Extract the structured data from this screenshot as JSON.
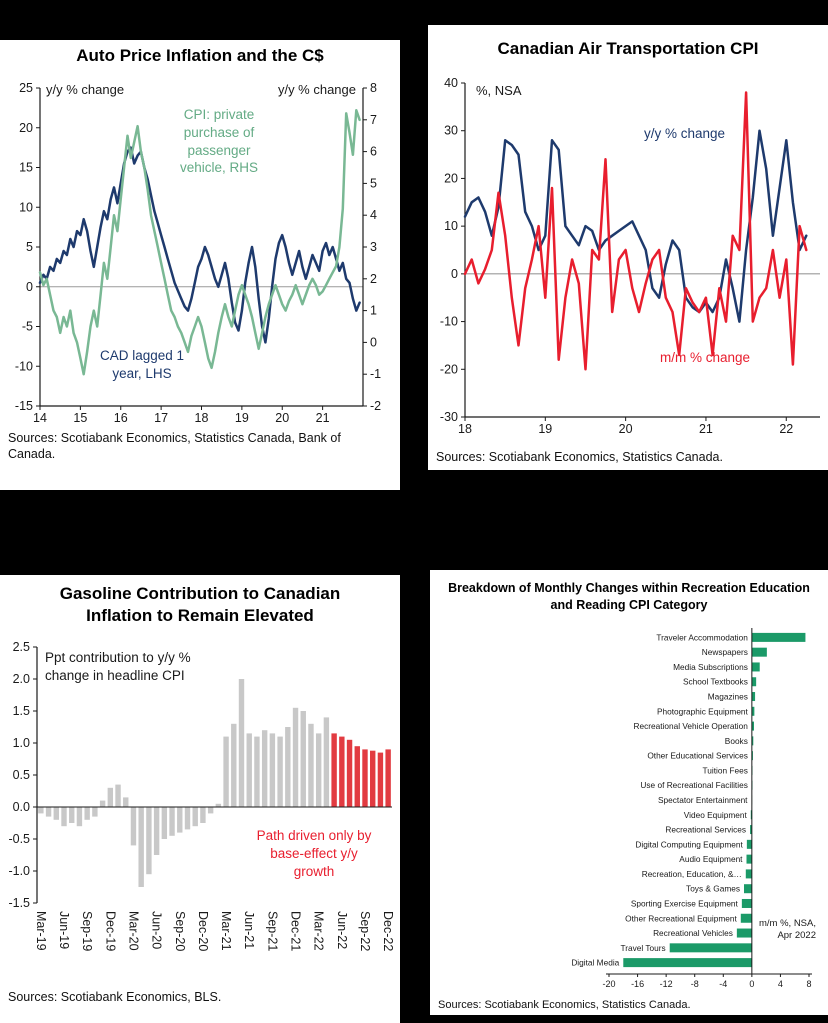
{
  "page": {
    "background": "#000000",
    "panel_background": "#ffffff"
  },
  "colors": {
    "navy": "#1e3a6d",
    "green_line": "#79b894",
    "green_text": "#64ab85",
    "red": "#e81e2e",
    "gray_bar": "#c8c8c8",
    "red_bar": "#e23b41",
    "green_bar": "#1b9a68",
    "axis": "#1a1a1a",
    "zero_line": "#9a9a9a"
  },
  "chart_data": [
    {
      "type": "line",
      "title": "Auto Price Inflation and the C$",
      "left_axis": {
        "label": "y/y % change",
        "min": -15,
        "max": 25,
        "step": 5
      },
      "right_axis": {
        "label": "y/y % change",
        "min": -2,
        "max": 8,
        "step": 1
      },
      "x_axis": {
        "min": 2014,
        "max": 2022,
        "ticks": [
          {
            "x": 2014,
            "label": "14"
          },
          {
            "x": 2015,
            "label": "15"
          },
          {
            "x": 2016,
            "label": "16"
          },
          {
            "x": 2017,
            "label": "17"
          },
          {
            "x": 2018,
            "label": "18"
          },
          {
            "x": 2019,
            "label": "19"
          },
          {
            "x": 2020,
            "label": "20"
          },
          {
            "x": 2021,
            "label": "21"
          }
        ]
      },
      "series": [
        {
          "name": "CAD lagged 1 year, LHS",
          "axis": "left",
          "color_key": "navy",
          "x_start": 2014.0,
          "x_step": 0.08333,
          "values": [
            0.5,
            1.5,
            1.0,
            2.5,
            2.0,
            3.5,
            3.0,
            4.5,
            4.0,
            6.0,
            5.0,
            7.0,
            6.5,
            8.5,
            7.0,
            4.5,
            2.5,
            5.0,
            7.5,
            9.5,
            8.5,
            11.0,
            12.5,
            10.5,
            13.0,
            15.5,
            17.0,
            17.5,
            15.5,
            16.5,
            17.0,
            15.0,
            13.5,
            11.5,
            9.5,
            8.0,
            6.5,
            5.0,
            3.5,
            2.0,
            0.5,
            -0.5,
            -1.5,
            -2.5,
            -3.0,
            -1.5,
            0.5,
            2.5,
            3.5,
            5.0,
            4.0,
            2.5,
            1.0,
            0.0,
            1.5,
            3.0,
            1.0,
            -2.0,
            -4.5,
            -5.5,
            -3.0,
            0.5,
            3.0,
            5.0,
            2.5,
            -1.5,
            -5.0,
            -7.0,
            -4.0,
            0.0,
            3.5,
            5.5,
            6.5,
            5.0,
            3.0,
            1.5,
            3.0,
            4.5,
            2.5,
            1.0,
            2.5,
            4.0,
            3.0,
            2.0,
            4.5,
            5.5,
            4.0,
            5.0,
            3.5,
            2.0,
            3.0,
            1.0,
            0.5,
            -1.5,
            -3.0,
            -2.0
          ]
        },
        {
          "name": "CPI: private purchase of passenger vehicle, RHS",
          "axis": "right",
          "color_key": "green_line",
          "x_start": 2014.0,
          "x_step": 0.08333,
          "values": [
            2.2,
            1.8,
            2.0,
            1.5,
            1.0,
            0.8,
            0.3,
            0.8,
            0.5,
            1.0,
            0.3,
            0.0,
            -0.5,
            -1.0,
            -0.3,
            0.5,
            1.0,
            0.5,
            1.5,
            2.5,
            2.0,
            3.0,
            4.0,
            3.5,
            4.5,
            5.5,
            6.5,
            5.8,
            6.3,
            6.8,
            6.0,
            5.5,
            4.8,
            4.0,
            3.5,
            3.0,
            2.5,
            2.0,
            1.5,
            1.0,
            0.8,
            0.5,
            0.3,
            0.0,
            -0.3,
            0.2,
            0.5,
            0.8,
            0.5,
            0.0,
            -0.5,
            -0.8,
            -0.3,
            0.3,
            0.8,
            1.2,
            0.8,
            0.5,
            1.0,
            1.5,
            1.8,
            1.5,
            1.2,
            0.8,
            0.3,
            -0.2,
            0.3,
            0.8,
            1.2,
            1.5,
            1.8,
            1.5,
            1.2,
            1.0,
            1.3,
            1.5,
            1.8,
            1.5,
            1.2,
            1.5,
            1.8,
            2.0,
            1.8,
            1.5,
            1.6,
            1.8,
            2.0,
            2.2,
            2.4,
            3.0,
            4.2,
            7.2,
            6.6,
            5.9,
            7.3,
            7.0
          ]
        }
      ],
      "annotations": {
        "cpi_vehicle": "CPI: private purchase of passenger vehicle, RHS",
        "cad": "CAD lagged 1 year, LHS"
      },
      "sources": "Sources: Scotiabank Economics, Statistics Canada, Bank of Canada."
    },
    {
      "type": "line",
      "title": "Canadian Air Transportation CPI",
      "left_axis": {
        "label": "%, NSA",
        "min": -30,
        "max": 40,
        "step": 10
      },
      "right_axis": null,
      "x_axis": {
        "min": 2018,
        "max": 2022.42,
        "ticks": [
          {
            "x": 2018,
            "label": "18"
          },
          {
            "x": 2019,
            "label": "19"
          },
          {
            "x": 2020,
            "label": "20"
          },
          {
            "x": 2021,
            "label": "21"
          },
          {
            "x": 2022,
            "label": "22"
          }
        ]
      },
      "series": [
        {
          "name": "y/y % change",
          "axis": "left",
          "color_key": "navy",
          "x_start": 2018.0,
          "x_step": 0.08333,
          "values": [
            12,
            15,
            16,
            13,
            8,
            14,
            28,
            27,
            25,
            13,
            10,
            5,
            8,
            28,
            26,
            10,
            8,
            6,
            10,
            9,
            5,
            7,
            8,
            9,
            10,
            11,
            8,
            5,
            -3,
            -5,
            2,
            7,
            5,
            -5,
            -7,
            -8,
            -6,
            -8,
            -5,
            3,
            -3,
            -10,
            5,
            16,
            30,
            22,
            8,
            18,
            28,
            15,
            5,
            8
          ]
        },
        {
          "name": "m/m % change",
          "axis": "left",
          "color_key": "red",
          "x_start": 2018.0,
          "x_step": 0.08333,
          "values": [
            0,
            3,
            -2,
            1,
            5,
            17,
            8,
            -5,
            -15,
            -3,
            3,
            10,
            -5,
            18,
            -18,
            -5,
            3,
            -2,
            -20,
            5,
            3,
            24,
            -8,
            3,
            5,
            -3,
            -8,
            -2,
            3,
            5,
            -5,
            -8,
            -17,
            -3,
            -6,
            -8,
            -5,
            -17,
            -3,
            -10,
            8,
            5,
            38,
            -10,
            -5,
            -3,
            5,
            -5,
            3,
            -19,
            10,
            5
          ]
        }
      ],
      "annotations": {
        "yoy": "y/y % change",
        "mom": "m/m % change"
      },
      "sources": "Sources: Scotiabank Economics, Statistics Canada."
    },
    {
      "type": "bar",
      "title": "Gasoline Contribution to Canadian Inflation to Remain Elevated",
      "y_axis": {
        "min": -1.5,
        "max": 2.5,
        "step": 0.5
      },
      "categories": [
        "Mar-19",
        "Apr-19",
        "May-19",
        "Jun-19",
        "Jul-19",
        "Aug-19",
        "Sep-19",
        "Oct-19",
        "Nov-19",
        "Dec-19",
        "Jan-20",
        "Feb-20",
        "Mar-20",
        "Apr-20",
        "May-20",
        "Jun-20",
        "Jul-20",
        "Aug-20",
        "Sep-20",
        "Oct-20",
        "Nov-20",
        "Dec-20",
        "Jan-21",
        "Feb-21",
        "Mar-21",
        "Apr-21",
        "May-21",
        "Jun-21",
        "Jul-21",
        "Aug-21",
        "Sep-21",
        "Oct-21",
        "Nov-21",
        "Dec-21",
        "Jan-22",
        "Feb-22",
        "Mar-22",
        "Apr-22",
        "May-22",
        "Jun-22",
        "Jul-22",
        "Aug-22",
        "Sep-22",
        "Oct-22",
        "Nov-22",
        "Dec-22"
      ],
      "tick_every": 3,
      "values": [
        -0.1,
        -0.15,
        -0.2,
        -0.3,
        -0.25,
        -0.3,
        -0.2,
        -0.15,
        0.1,
        0.3,
        0.35,
        0.15,
        -0.6,
        -1.25,
        -1.05,
        -0.75,
        -0.5,
        -0.45,
        -0.4,
        -0.35,
        -0.3,
        -0.25,
        -0.1,
        0.05,
        1.1,
        1.3,
        2.0,
        1.15,
        1.1,
        1.2,
        1.15,
        1.1,
        1.25,
        1.55,
        1.5,
        1.3,
        1.15,
        1.4,
        1.15,
        1.1,
        1.05,
        0.95,
        0.9,
        0.88,
        0.85,
        0.9
      ],
      "forecast_start_index": 38,
      "annotations": {
        "ppt": "Ppt contribution to y/y % change in headline CPI",
        "path": "Path driven only by base-effect y/y growth"
      },
      "sources": "Sources: Scotiabank Economics, BLS."
    },
    {
      "type": "hbar",
      "title": "Breakdown of Monthly Changes within Recreation Education and Reading CPI Category",
      "x_axis": {
        "min": -20,
        "max": 8,
        "step": 4
      },
      "categories": [
        "Traveler Accommodation",
        "Newspapers",
        "Media Subscriptions",
        "School Textbooks",
        "Magazines",
        "Photographic Equipment",
        "Recreational Vehicle Operation",
        "Books",
        "Other Educational Services",
        "Tuition Fees",
        "Use of Recreational Facilities",
        "Spectator Entertainment",
        "Video Equipment",
        "Recreational Services",
        "Digital Computing Equipment",
        "Audio Equipment",
        "Recreation, Education, &…",
        "Toys & Games",
        "Sporting Exercise Equipment",
        "Other Recreational Equipment",
        "Recreational Vehicles",
        "Travel Tours",
        "Digital Media"
      ],
      "values": [
        7.5,
        2.1,
        1.1,
        0.6,
        0.45,
        0.35,
        0.3,
        0.2,
        0.15,
        0.05,
        0.0,
        -0.05,
        -0.15,
        -0.25,
        -0.7,
        -0.75,
        -0.85,
        -1.1,
        -1.4,
        -1.55,
        -2.1,
        -11.5,
        -18.0
      ],
      "note": "m/m %, NSA, Apr 2022",
      "sources": "Sources: Scotiabank Economics, Statistics Canada."
    }
  ]
}
